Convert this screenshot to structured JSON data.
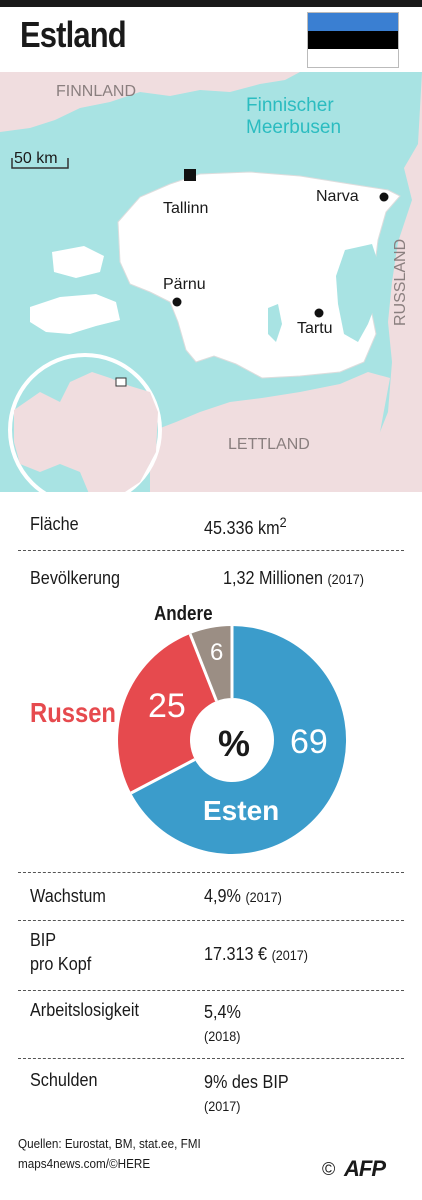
{
  "header": {
    "title": "Estland"
  },
  "flag": {
    "colors": [
      "#3a7fd2",
      "#000000",
      "#ffffff"
    ]
  },
  "map": {
    "labels": {
      "finland": "FINNLAND",
      "gulf": [
        "Finnischer",
        "Meerbusen"
      ],
      "scale": "50 km",
      "tallinn": "Tallinn",
      "narva": "Narva",
      "parnu": "Pärnu",
      "tartu": "Tartu",
      "russia": "RUSSLAND",
      "latvia": "LETTLAND"
    },
    "colors": {
      "sea": "#a8e3e3",
      "land": "#f0dddf",
      "estonia": "#ffffff"
    }
  },
  "stats": {
    "area_label": "Fläche",
    "area_value": "45.336 km",
    "area_unit_sup": "2",
    "pop_label": "Bevölkerung",
    "pop_value": "1,32 Millionen",
    "pop_year": "(2017)",
    "growth_label": "Wachstum",
    "growth_value": "4,9%",
    "growth_year": "(2017)",
    "gdp_label_1": "BIP",
    "gdp_label_2": "pro Kopf",
    "gdp_value": "17.313 €",
    "gdp_year": "(2017)",
    "unemp_label": "Arbeitslosigkeit",
    "unemp_value": "5,4%",
    "unemp_year": "(2018)",
    "debt_label": "Schulden",
    "debt_value": "9% des BIP",
    "debt_year": "(2017)"
  },
  "donut": {
    "center_label": "%",
    "segments": [
      {
        "name": "Esten",
        "value": 69,
        "color": "#3b9ccb"
      },
      {
        "name": "Russen",
        "value": 25,
        "color": "#e64a4e"
      },
      {
        "name": "Andere",
        "value": 6,
        "color": "#9b8e84"
      }
    ]
  },
  "footer": {
    "sources": "Quellen: Eurostat, BM, stat.ee, FMI",
    "credit": "maps4news.com/©HERE",
    "copyright": "©",
    "agency": "AFP"
  }
}
